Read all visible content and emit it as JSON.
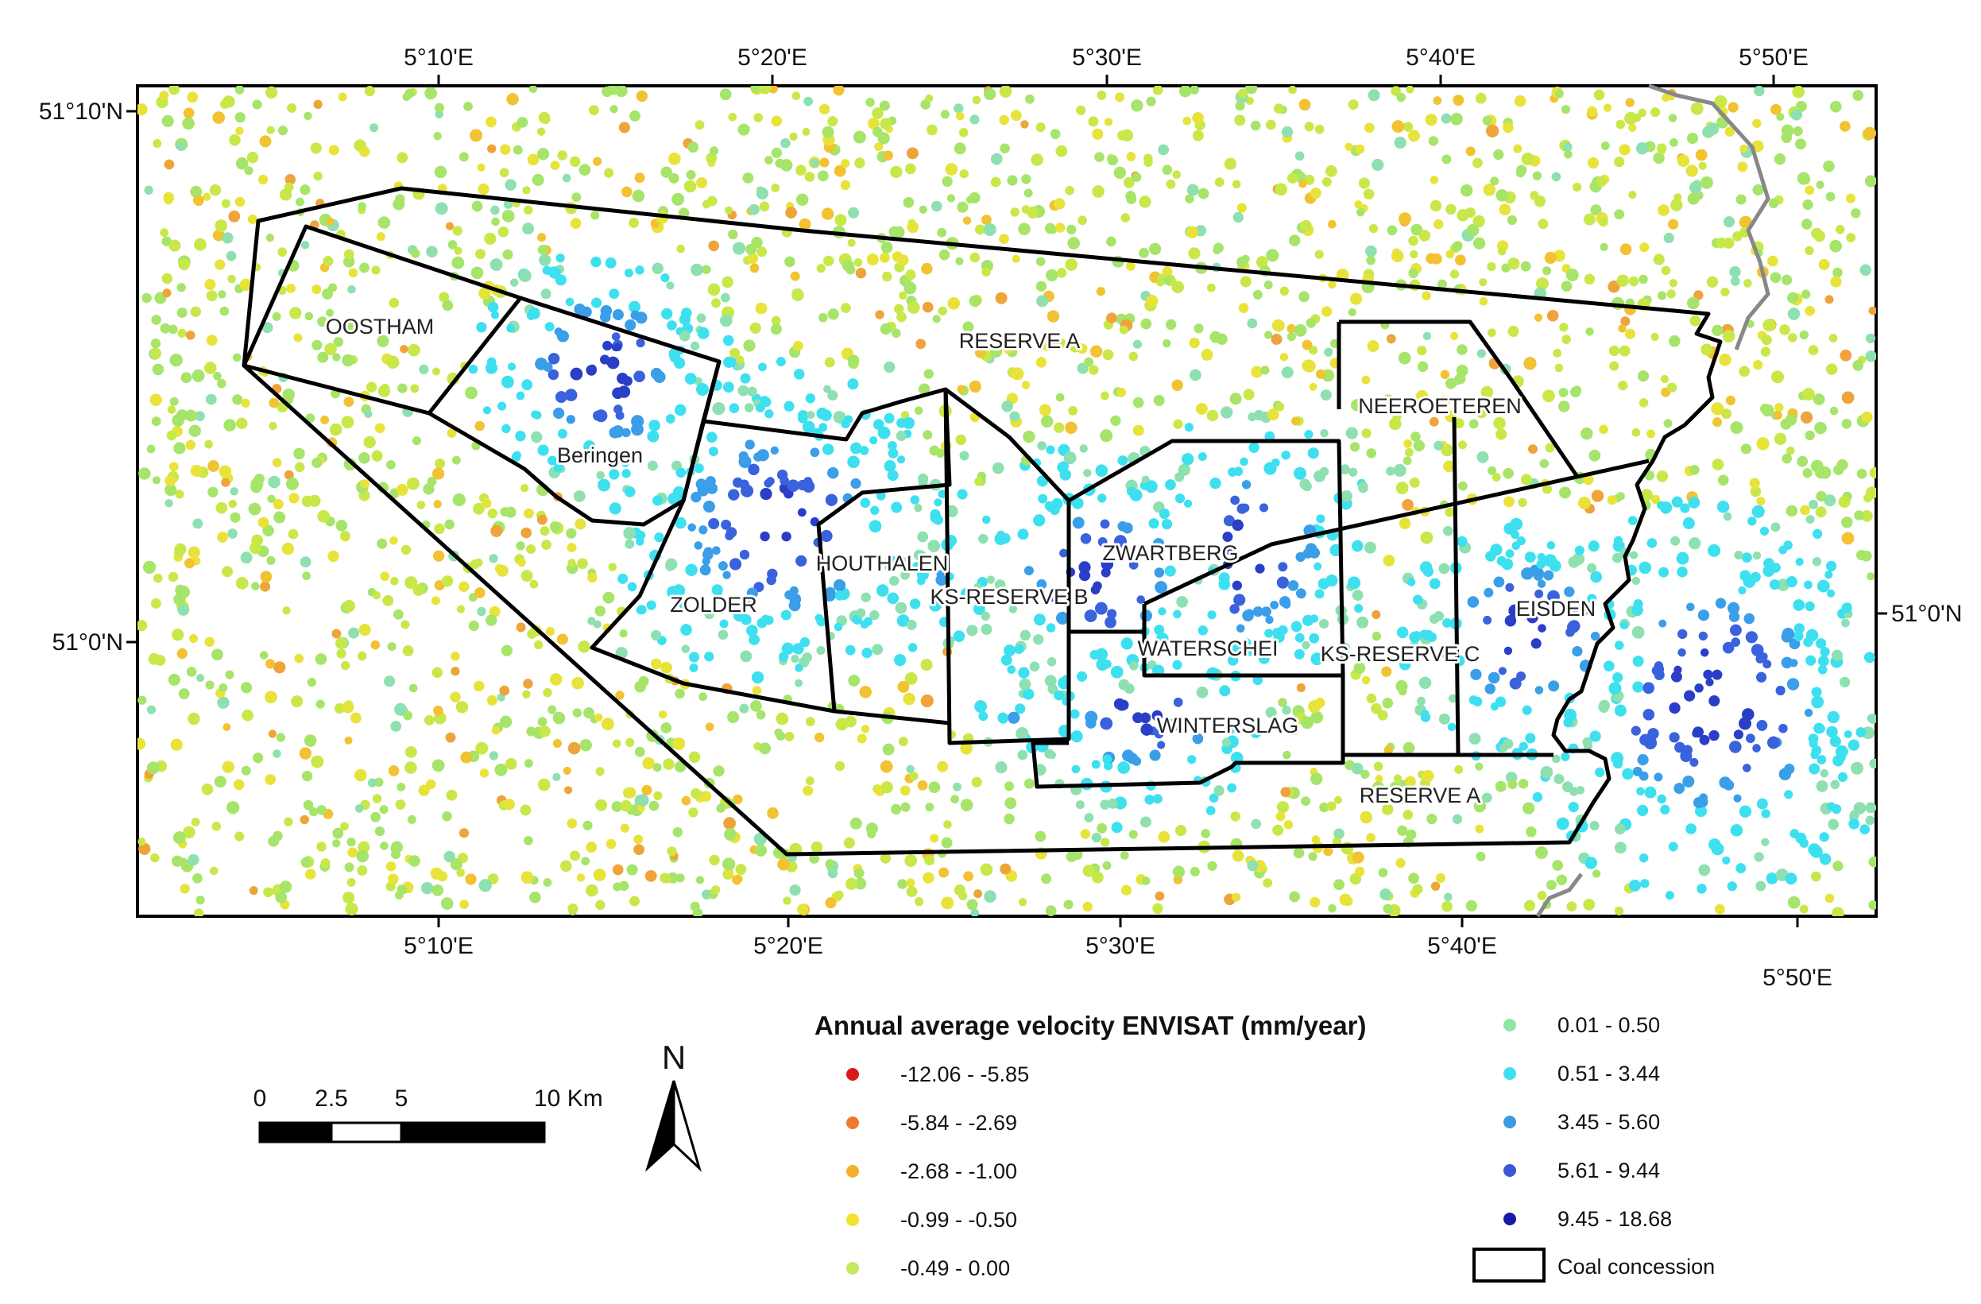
{
  "map": {
    "lon_ticks_top": [
      "5°10'E",
      "5°20'E",
      "5°30'E",
      "5°40'E",
      "5°50'E"
    ],
    "lon_ticks_bottom": [
      "5°10'E",
      "5°20'E",
      "5°30'E",
      "5°40'E",
      "5°50'E"
    ],
    "lat_ticks_left": [
      "51°10'N",
      "51°0'N"
    ],
    "lat_ticks_right": [
      "51°0'N"
    ],
    "regions": [
      "OOSTHAM",
      "Beringen",
      "RESERVE A",
      "ZOLDER",
      "HOUTHALEN",
      "KS-RESERVE B",
      "ZWARTBERG",
      "WATERSCHEI",
      "WINTERSLAG",
      "NEEROETEREN",
      "KS-RESERVE C",
      "EISDEN",
      "RESERVE A"
    ],
    "colors": {
      "background_points": [
        "#a6e46a",
        "#c8e84a",
        "#e8e33a",
        "#f2c232",
        "#eea43a",
        "#8ee0b0",
        "#4fe3e8"
      ],
      "subsidence_points": [
        "#3ee0f0",
        "#3a9ee8",
        "#3a62dc",
        "#2a3ec8"
      ],
      "boundary": "#000000",
      "border": "#7a7a7a"
    }
  },
  "legend": {
    "title": "Annual average velocity ENVISAT (mm/year)",
    "classes": [
      {
        "label": "-12.06 - -5.85",
        "color": "#d7191c"
      },
      {
        "label": "-5.84 - -2.69",
        "color": "#f07a2c"
      },
      {
        "label": "-2.68 - -1.00",
        "color": "#f4b02c"
      },
      {
        "label": "-0.99 - -0.50",
        "color": "#f2e230"
      },
      {
        "label": "-0.49 - 0.00",
        "color": "#c6e85c"
      },
      {
        "label": "0.01 - 0.50",
        "color": "#8ee6a4"
      },
      {
        "label": "0.51 - 3.44",
        "color": "#3fe0ee"
      },
      {
        "label": "3.45 - 5.60",
        "color": "#3a9ae2"
      },
      {
        "label": "5.61 - 9.44",
        "color": "#3a58d8"
      },
      {
        "label": "9.45 - 18.68",
        "color": "#1a1aa8"
      }
    ],
    "concession_label": "Coal concession"
  },
  "scalebar": {
    "labels": [
      "0",
      "2.5",
      "5",
      "10 Km"
    ]
  },
  "north_arrow": {
    "label": "N"
  }
}
